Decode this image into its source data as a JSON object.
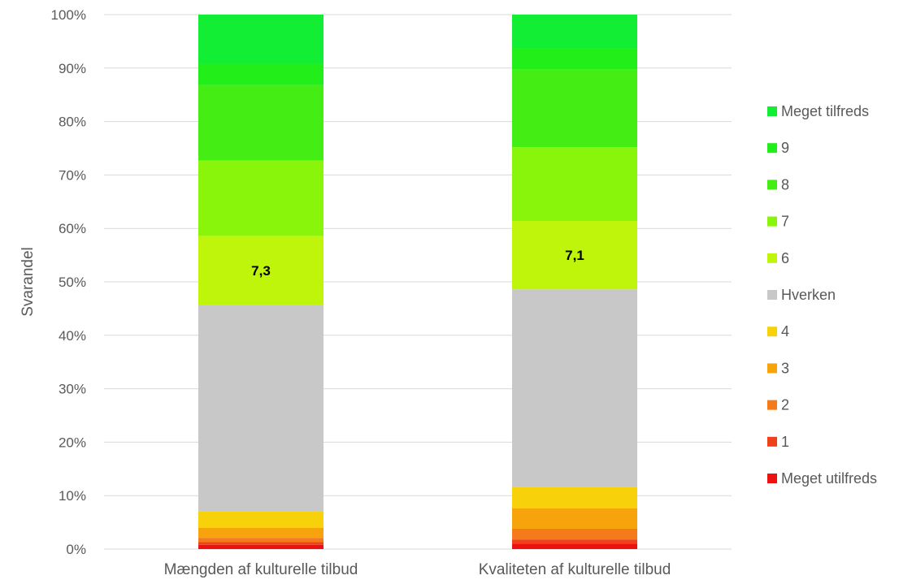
{
  "chart_data": {
    "type": "bar",
    "stacked": true,
    "categories": [
      "Mængden af kulturelle tilbud",
      "Kvaliteten af kulturelle tilbud"
    ],
    "xlabel": "",
    "ylabel": "Svarandel",
    "ylim": [
      0,
      100
    ],
    "yticks": [
      "0%",
      "10%",
      "20%",
      "30%",
      "40%",
      "50%",
      "60%",
      "70%",
      "80%",
      "90%",
      "100%"
    ],
    "grid": true,
    "legend_position": "right",
    "series": [
      {
        "name": "Meget utilfreds",
        "color": "#ee1111",
        "values": [
          0.8,
          1.0
        ]
      },
      {
        "name": "1",
        "color": "#f0421a",
        "values": [
          0.5,
          0.8
        ]
      },
      {
        "name": "2",
        "color": "#f47a1a",
        "values": [
          0.8,
          2.0
        ]
      },
      {
        "name": "3",
        "color": "#f7a30c",
        "values": [
          1.9,
          3.8
        ]
      },
      {
        "name": "4",
        "color": "#f7d20a",
        "values": [
          3.1,
          4.0
        ]
      },
      {
        "name": "Hverken",
        "color": "#c8c8c8",
        "values": [
          38.5,
          37.0
        ]
      },
      {
        "name": "6",
        "color": "#bff50a",
        "values": [
          13.0,
          12.8
        ]
      },
      {
        "name": "7",
        "color": "#88f50a",
        "values": [
          14.1,
          13.8
        ]
      },
      {
        "name": "8",
        "color": "#44ee14",
        "values": [
          14.1,
          14.5
        ]
      },
      {
        "name": "9",
        "color": "#22ee1a",
        "values": [
          4.0,
          4.0
        ]
      },
      {
        "name": "Meget tilfreds",
        "color": "#11ee33",
        "values": [
          9.2,
          6.3
        ]
      }
    ],
    "bar_labels": [
      "7,3",
      "7,1"
    ]
  }
}
